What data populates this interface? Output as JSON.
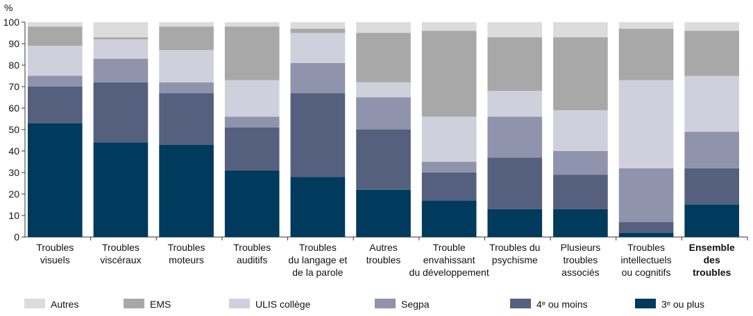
{
  "chart_data": {
    "type": "stacked_bar",
    "y_unit": "%",
    "categories": [
      [
        "Troubles",
        "visuels"
      ],
      [
        "Troubles",
        "viscéraux"
      ],
      [
        "Troubles",
        "moteurs"
      ],
      [
        "Troubles",
        "auditifs"
      ],
      [
        "Troubles",
        "du langage et",
        "de la parole"
      ],
      [
        "Autres",
        "troubles"
      ],
      [
        "Trouble",
        "envahissant",
        "du développement"
      ],
      [
        "Troubles du",
        "psychisme"
      ],
      [
        "Plusieurs",
        "troubles",
        "associés"
      ],
      [
        "Troubles",
        "intellectuels",
        "ou cognitifs"
      ],
      [
        "Ensemble",
        "des",
        "troubles"
      ]
    ],
    "bold_categories": [
      10
    ],
    "series": [
      {
        "name": "3ᵉ ou plus",
        "color": "#003a5d",
        "values": [
          53,
          44,
          43,
          31,
          28,
          22,
          17,
          13,
          13,
          2,
          15
        ]
      },
      {
        "name": "4ᵉ ou moins",
        "color": "#555f7e",
        "values": [
          17,
          28,
          24,
          20,
          39,
          28,
          13,
          24,
          16,
          5,
          17
        ]
      },
      {
        "name": "Segpa",
        "color": "#8f93ab",
        "values": [
          5,
          11,
          5,
          5,
          14,
          15,
          5,
          19,
          11,
          25,
          17
        ]
      },
      {
        "name": "ULIS collège",
        "color": "#cfd0dc",
        "values": [
          14,
          9,
          15,
          17,
          14,
          7,
          21,
          12,
          19,
          41,
          26
        ]
      },
      {
        "name": "EMS",
        "color": "#a8a8a8",
        "values": [
          9,
          1,
          11,
          25,
          2,
          23,
          40,
          25,
          34,
          24,
          21
        ]
      },
      {
        "name": "Autres",
        "color": "#dcdcdc",
        "values": [
          2,
          7,
          2,
          2,
          3,
          5,
          4,
          7,
          7,
          3,
          4
        ]
      }
    ],
    "ylim": [
      0,
      100
    ],
    "yticks": [
      0,
      10,
      20,
      30,
      40,
      50,
      60,
      70,
      80,
      90,
      100
    ]
  }
}
